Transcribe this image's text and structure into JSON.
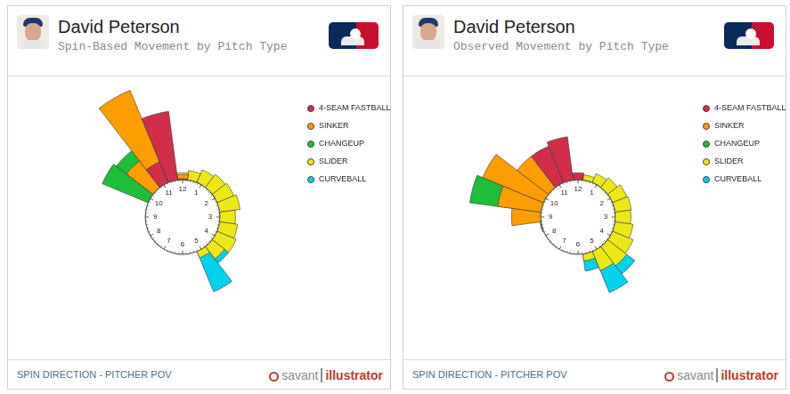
{
  "chart_data": [
    {
      "type": "rose",
      "title": "David Peterson",
      "subtitle": "Spin-Based Movement by Pitch Type",
      "footer": "SPIN DIRECTION - PITCHER POV",
      "source": [
        "savant",
        "illustrator"
      ],
      "categories": [
        "12",
        null,
        "1",
        null,
        "2",
        null,
        "3",
        null,
        "4",
        null,
        "5",
        null,
        "6",
        null,
        "7",
        null,
        "8",
        null,
        "9",
        null,
        "10",
        null,
        "11",
        null
      ],
      "ylim": [
        0,
        165
      ],
      "legend": "upper right",
      "series": [
        {
          "name": "4-SEAM FASTBALL",
          "color": "#d22d49",
          "values": [
            45,
            0,
            0,
            0,
            0,
            0,
            0,
            0,
            0,
            0,
            0,
            0,
            0,
            0,
            0,
            0,
            0,
            0,
            0,
            0,
            0,
            0,
            70,
            125
          ]
        },
        {
          "name": "SINKER",
          "color": "#fe9d00",
          "values": [
            50,
            0,
            0,
            0,
            0,
            0,
            0,
            0,
            0,
            0,
            0,
            0,
            0,
            0,
            0,
            0,
            0,
            0,
            0,
            0,
            0,
            83,
            161,
            0
          ]
        },
        {
          "name": "CHANGEUP",
          "color": "#1dbe3a",
          "values": [
            0,
            0,
            0,
            0,
            0,
            0,
            0,
            0,
            0,
            0,
            0,
            0,
            0,
            0,
            0,
            0,
            0,
            0,
            0,
            0,
            102,
            98,
            0,
            0
          ]
        },
        {
          "name": "SLIDER",
          "color": "#eee716",
          "values": [
            52,
            55,
            60,
            63,
            65,
            68,
            62,
            65,
            68,
            62,
            52,
            0,
            0,
            0,
            0,
            0,
            0,
            0,
            0,
            0,
            0,
            0,
            0,
            0
          ]
        },
        {
          "name": "CURVEBALL",
          "color": "#00d1ed",
          "values": [
            0,
            0,
            0,
            0,
            0,
            0,
            0,
            0,
            0,
            68,
            95,
            0,
            0,
            0,
            0,
            0,
            0,
            0,
            0,
            0,
            0,
            0,
            0,
            0
          ]
        }
      ]
    },
    {
      "type": "rose",
      "title": "David Peterson",
      "subtitle": "Observed Movement by Pitch Type",
      "footer": "SPIN DIRECTION - PITCHER POV",
      "source": [
        "savant",
        "illustrator"
      ],
      "categories": [
        "12",
        null,
        "1",
        null,
        "2",
        null,
        "3",
        null,
        "4",
        null,
        "5",
        null,
        "6",
        null,
        "7",
        null,
        "8",
        null,
        "9",
        null,
        "10",
        null,
        "11",
        null
      ],
      "ylim": [
        0,
        165
      ],
      "legend": "upper right",
      "series": [
        {
          "name": "4-SEAM FASTBALL",
          "color": "#d22d49",
          "values": [
            52,
            0,
            0,
            0,
            0,
            0,
            0,
            0,
            0,
            0,
            0,
            0,
            0,
            0,
            0,
            0,
            0,
            0,
            0,
            0,
            0,
            0,
            90,
            95
          ]
        },
        {
          "name": "SINKER",
          "color": "#fe9d00",
          "values": [
            0,
            0,
            0,
            0,
            0,
            0,
            0,
            0,
            0,
            0,
            0,
            0,
            0,
            0,
            0,
            0,
            0,
            0,
            78,
            95,
            121,
            90,
            60,
            0
          ]
        },
        {
          "name": "CHANGEUP",
          "color": "#1dbe3a",
          "values": [
            0,
            0,
            0,
            0,
            0,
            0,
            0,
            0,
            0,
            0,
            0,
            0,
            0,
            0,
            0,
            0,
            0,
            45,
            0,
            128,
            0,
            0,
            0,
            0
          ]
        },
        {
          "name": "SLIDER",
          "color": "#eee716",
          "values": [
            45,
            50,
            55,
            58,
            62,
            63,
            62,
            65,
            70,
            72,
            68,
            52,
            0,
            0,
            0,
            0,
            0,
            0,
            0,
            0,
            0,
            0,
            0,
            0
          ]
        },
        {
          "name": "CURVEBALL",
          "color": "#00d1ed",
          "values": [
            0,
            0,
            0,
            0,
            0,
            0,
            0,
            0,
            0,
            84,
            96,
            64,
            0,
            0,
            0,
            0,
            0,
            0,
            0,
            0,
            0,
            0,
            0,
            0
          ]
        }
      ]
    }
  ]
}
